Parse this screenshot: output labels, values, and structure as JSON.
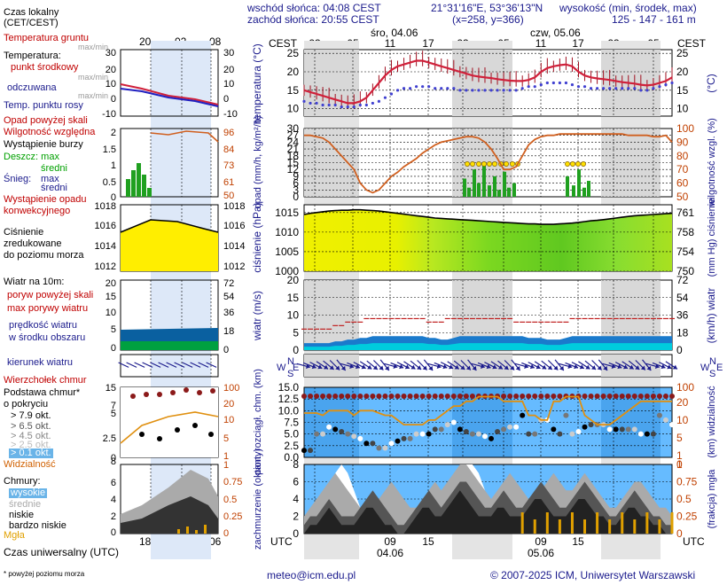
{
  "header": {
    "sunrise": "wschód słońca: 04:08 CEST",
    "sunset": "zachód słońca: 20:55 CEST",
    "coords": "21°31'16\"E, 53°36'13\"N",
    "grid": "(x=258, y=366)",
    "height_label": "wysokość (min, środek, max)",
    "height_values": "125 - 147 - 161 m",
    "day1": "śro, 04.06",
    "day2": "czw, 05.06",
    "cest": "CEST",
    "utc": "UTC"
  },
  "legend": {
    "czas_lokalny": "Czas lokalny",
    "cet_cest": "(CET/CEST)",
    "temp_gruntu": "Temperatura gruntu",
    "max_min": "max/min",
    "temperatura": "Temperatura:",
    "punkt_srodkowy": "punkt środkowy",
    "max_min2": "max/min",
    "odczuwana": "odczuwana",
    "max_min3": "max/min",
    "punkt_rosy": "Temp. punktu rosy",
    "opad_powyzej": "Opad powyżej skali",
    "wilgotnosc": "Wilgotność względna",
    "burza": "Wystąpienie burzy",
    "deszcz_max": "Deszcz: max",
    "srednie": "średni",
    "snieg_max": "Śnieg:",
    "max": "max",
    "sredni2": "średni",
    "wyst_opadu": "Wystąpienie opadu",
    "konwekcyjnego": "konwekcyjnego",
    "cisnienie": "Ciśnienie",
    "zredukowane": "zredukowane",
    "do_poziomu": "do poziomu morza",
    "wiatr_na": "Wiatr na 10m:",
    "poryw_powyzej": "poryw powyżej skali",
    "max_porywy": "max porywy wiatru",
    "predkosc": "prędkość wiatru",
    "w_srodku": "w środku obszaru",
    "kierunek": "kierunek wiatru",
    "wierzcholek": "Wierzchołek chmur",
    "podstawa": "Podstawa chmur*",
    "o_pokryciu": "o pokryciu",
    "okt79": "> 7.9 okt.",
    "okt65": "> 6.5 okt.",
    "okt45": "> 4.5 okt.",
    "okt25": "> 2.5 okt.",
    "okt01": "> 0.1 okt.",
    "widzialnosc": "Widzialność",
    "chmury": "Chmury:",
    "wysokie": "wysokie",
    "srednie2": "średnie",
    "niskie": "niskie",
    "bardzo_niskie": "bardzo niskie",
    "mgla": "Mgła",
    "czas_uniwersalny": "Czas uniwersalny (UTC)",
    "footnote": "* powyżej poziomu morza",
    "legend_top_ticks": [
      "20",
      "02",
      "08"
    ],
    "legend_bottom_ticks": [
      "18",
      "00",
      "06"
    ]
  },
  "panel_titles": {
    "temp_left": "temperatura (°C)",
    "temp_right": "(°C)",
    "opad_left": "opad (mm/h, kg/m²/h)",
    "wilg_right": "wilgotność wzgl. (%)",
    "cisn_left": "ciśnienie (hPa)",
    "cisn_right": "(mm Hg) ciśnienie",
    "wiatr_left": "wiatr (m/s)",
    "wiatr_right": "(km/h) wiatr",
    "chm_left": "pion. rozciągł. chm. (km)",
    "widz_right": "(km) widzialność",
    "zachm_left": "zachmurzenie (oktanty)",
    "mgla_right": "(frakcja) mgła"
  },
  "footer": {
    "email": "meteo@icm.edu.pl",
    "copyright": "© 2007-2025 ICM, Uniwersytet Warszawski"
  },
  "colors": {
    "temperature": "#d0203a",
    "dewpoint": "#4040d0",
    "humidity": "#d06020",
    "rain": "#20a020",
    "pressure_fill": "#ffee00",
    "pressure_fill2": "#7cd820",
    "wind_fill": "#1a7acc",
    "wind_fill2": "#00ccdd",
    "gust": "#c02020",
    "cloud_bg": "#66bbff",
    "night_band": "#d8d8d8"
  },
  "chart_data": [
    {
      "type": "line",
      "name": "temperature",
      "x": [
        1,
        2,
        3,
        4,
        5,
        6,
        7,
        8,
        9,
        10,
        11,
        12,
        13,
        14,
        15,
        16,
        17,
        18,
        19,
        20,
        21,
        22,
        23,
        24,
        25,
        26,
        27,
        28,
        29,
        30,
        31,
        32,
        33,
        34,
        35,
        36,
        37,
        38,
        39,
        40,
        41,
        42,
        43,
        44,
        45,
        46,
        47,
        48,
        49,
        50,
        51,
        52,
        53,
        54,
        55,
        56,
        57,
        58,
        59,
        60
      ],
      "x_tick_labels_cest": [
        "23",
        "05",
        "11",
        "17",
        "23",
        "05",
        "11",
        "17",
        "23",
        "05"
      ],
      "x_tick_labels_utc": [
        "21",
        "03",
        "09",
        "15",
        "21",
        "03",
        "09",
        "15",
        "21",
        "03"
      ],
      "series": [
        {
          "values": [
            15,
            14.5,
            14,
            13.5,
            13,
            12.5,
            12,
            11.5,
            11.5,
            12,
            13,
            15,
            17,
            19,
            20.5,
            21.5,
            22,
            22.5,
            23,
            23,
            22.5,
            22,
            21.5,
            21,
            20.5,
            20,
            19.5,
            19,
            18.7,
            18.5,
            18.3,
            18,
            17.8,
            17.6,
            17.5,
            17.5,
            17.8,
            18.5,
            20,
            21,
            21.5,
            21.8,
            22,
            21.5,
            20,
            19,
            18.5,
            18.2,
            18,
            17.8,
            17.5,
            17.2,
            17,
            16.8,
            16.5,
            16.3,
            16.5,
            17,
            17.5,
            18.5
          ]
        },
        {
          "values": [
            12,
            11.5,
            11.5,
            11,
            11,
            11,
            10.5,
            10.5,
            10.5,
            11,
            11,
            11.5,
            12,
            13,
            14,
            15,
            15.5,
            15.5,
            16,
            16,
            16,
            15.5,
            15.5,
            15.5,
            15.5,
            15,
            15,
            15,
            15,
            15,
            15,
            15,
            15,
            15,
            15,
            15.5,
            16,
            16,
            16.5,
            17,
            17,
            17,
            17,
            16.5,
            16,
            16,
            15.5,
            15.5,
            15.5,
            15.5,
            15.5,
            15.5,
            15.5,
            15.5,
            15,
            15,
            15.5,
            16,
            16.5,
            17
          ]
        }
      ],
      "ylim": [
        8,
        26
      ],
      "yticks": [
        10,
        15,
        20,
        25
      ]
    },
    {
      "type": "line",
      "name": "humidity",
      "values": [
        95,
        95,
        94,
        93,
        90,
        85,
        80,
        75,
        70,
        60,
        55,
        53,
        55,
        60,
        65,
        68,
        72,
        75,
        78,
        82,
        85,
        88,
        90,
        91,
        92,
        93,
        94,
        94,
        93,
        90,
        85,
        78,
        70,
        70,
        72,
        80,
        88,
        92,
        94,
        95,
        95,
        96,
        96,
        96,
        96,
        96,
        96,
        96,
        96,
        96,
        96,
        96,
        95,
        95,
        95,
        95,
        94,
        94,
        95,
        90
      ],
      "ylim": [
        50,
        100
      ],
      "yticks": [
        50,
        60,
        70,
        80,
        90,
        100
      ],
      "rain_max": [
        0,
        0,
        0,
        0,
        0,
        0,
        0,
        0,
        0,
        0,
        0,
        0,
        0,
        0,
        0,
        0,
        0,
        0,
        0,
        0,
        0,
        0,
        0,
        0,
        0,
        0,
        0,
        0,
        0,
        0,
        0,
        0,
        0,
        0,
        0,
        0,
        0,
        0,
        0,
        0,
        0,
        0,
        0,
        0,
        0,
        0,
        0,
        0,
        0,
        0,
        0,
        0,
        0,
        0,
        0,
        0,
        0,
        0,
        0,
        0
      ],
      "rain_ylim": [
        0,
        30
      ],
      "rain_yticks": [
        0,
        3,
        6,
        9,
        12,
        15,
        18,
        21,
        24,
        27,
        30
      ]
    },
    {
      "type": "area",
      "name": "pressure",
      "values": [
        1014.5,
        1014.8,
        1015,
        1015.2,
        1015.4,
        1015.5,
        1015.6,
        1015.6,
        1015.7,
        1015.7,
        1015.6,
        1015.5,
        1015.4,
        1015.2,
        1015,
        1014.8,
        1014.6,
        1014.4,
        1014.2,
        1014,
        1013.8,
        1013.6,
        1013.5,
        1013.4,
        1013.3,
        1013.2,
        1013.1,
        1013,
        1012.9,
        1012.8,
        1012.7,
        1012.6,
        1012.5,
        1012.4,
        1012.3,
        1012.2,
        1012.1,
        1012.1,
        1012,
        1012,
        1012,
        1012.1,
        1012.2,
        1012.3,
        1012.5,
        1012.7,
        1012.9,
        1013,
        1013.2,
        1013.4,
        1013.6,
        1013.8,
        1014,
        1014.2,
        1014.3,
        1014.4,
        1014.5,
        1014.6,
        1014.7,
        1014.8
      ],
      "ylim": [
        1000,
        1017
      ],
      "yticks": [
        1000,
        1005,
        1010,
        1015
      ],
      "yticks_mmhg": [
        750,
        754,
        758,
        761
      ]
    },
    {
      "type": "area",
      "name": "wind",
      "values": [
        2,
        2,
        2,
        2,
        2,
        2.5,
        2.5,
        3,
        3,
        3.5,
        3.5,
        4,
        4,
        4,
        4,
        4,
        4,
        4,
        4,
        4,
        3.5,
        3.5,
        3,
        3,
        3.5,
        4,
        4,
        4,
        4,
        4,
        4,
        4,
        4,
        4,
        4,
        4,
        3.5,
        3.5,
        3.5,
        3,
        3,
        3,
        3.5,
        4,
        4,
        4,
        4,
        4,
        4,
        4,
        4,
        4,
        4,
        4,
        4,
        4,
        4,
        4,
        4,
        4
      ],
      "gust": [
        6,
        6,
        6,
        6,
        6,
        7,
        7,
        8,
        8,
        8,
        9,
        9,
        9,
        9,
        9,
        9,
        9,
        9,
        9,
        9,
        8,
        8,
        8,
        9,
        9,
        9,
        9,
        9,
        9,
        9,
        9,
        9,
        9,
        9,
        8,
        8,
        8,
        8,
        8,
        8,
        8,
        8,
        8,
        9,
        9,
        9,
        9,
        9,
        9,
        9,
        9,
        9,
        9,
        9,
        9,
        9,
        9,
        9,
        9,
        9
      ],
      "ylim": [
        0,
        20
      ],
      "yticks": [
        0,
        5,
        10,
        15,
        20
      ],
      "yticks_kmh": [
        0,
        18,
        36,
        54,
        72
      ]
    },
    {
      "type": "scatter",
      "name": "cloud_base_visibility",
      "ylim": [
        0,
        15
      ],
      "yticks": [
        0,
        2.5,
        5,
        7.5,
        10,
        12.5,
        15
      ],
      "visibility_yticks": [
        0,
        1,
        5,
        10,
        20,
        100
      ]
    },
    {
      "type": "area",
      "name": "cloud_cover",
      "ylim": [
        0,
        8
      ],
      "yticks": [
        0,
        2,
        4,
        6,
        8
      ],
      "fog_yticks": [
        0,
        0.25,
        0.5,
        0.75,
        1
      ]
    }
  ]
}
